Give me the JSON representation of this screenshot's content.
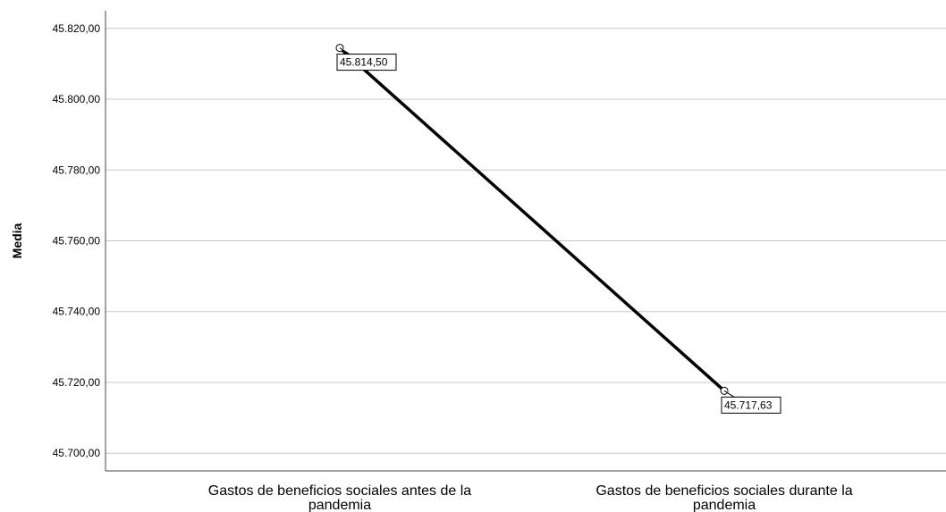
{
  "chart_data": {
    "type": "line",
    "title": "",
    "xlabel": "",
    "ylabel": "Media",
    "ylim": [
      45695,
      45825
    ],
    "yticks": [
      {
        "value": 45700,
        "label": "45.700,00"
      },
      {
        "value": 45720,
        "label": "45.720,00"
      },
      {
        "value": 45740,
        "label": "45.740,00"
      },
      {
        "value": 45760,
        "label": "45.760,00"
      },
      {
        "value": 45780,
        "label": "45.780,00"
      },
      {
        "value": 45800,
        "label": "45.800,00"
      },
      {
        "value": 45820,
        "label": "45.820,00"
      }
    ],
    "grid": true,
    "categories": [
      [
        "Gastos de beneficios sociales antes de la",
        "pandemia"
      ],
      [
        "Gastos de beneficios sociales durante la",
        "pandemia"
      ]
    ],
    "series": [
      {
        "values": [
          45814.5,
          45717.63
        ],
        "data_labels": [
          "45.814,50",
          "45.717,63"
        ],
        "color": "#000000"
      }
    ]
  }
}
